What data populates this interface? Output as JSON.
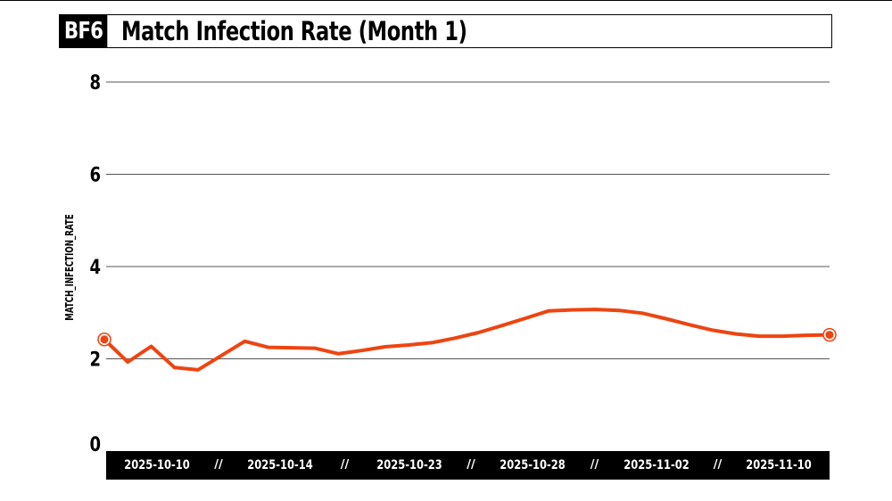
{
  "header": {
    "badge": "BF6",
    "title": "Match Infection Rate (Month 1)"
  },
  "chart_data": {
    "type": "line",
    "title": "Match Infection Rate (Month 1)",
    "xlabel": "",
    "ylabel": "MATCH_INFECTION_RATE",
    "ylim": [
      0,
      8
    ],
    "yticks": [
      0,
      2,
      4,
      6,
      8
    ],
    "grid": true,
    "x_tick_labels": [
      "2025-10-10",
      "2025-10-14",
      "2025-10-23",
      "2025-10-28",
      "2025-11-02",
      "2025-11-10"
    ],
    "x_tick_separator": "//",
    "series": [
      {
        "color": "#ee4411",
        "values": [
          2.42,
          1.93,
          2.27,
          1.81,
          1.76,
          2.07,
          2.38,
          2.25,
          2.24,
          2.23,
          2.11,
          2.18,
          2.26,
          2.3,
          2.35,
          2.45,
          2.57,
          2.72,
          2.88,
          3.04,
          3.06,
          3.07,
          3.05,
          2.99,
          2.87,
          2.74,
          2.62,
          2.54,
          2.49,
          2.49,
          2.51,
          2.52
        ]
      }
    ]
  }
}
